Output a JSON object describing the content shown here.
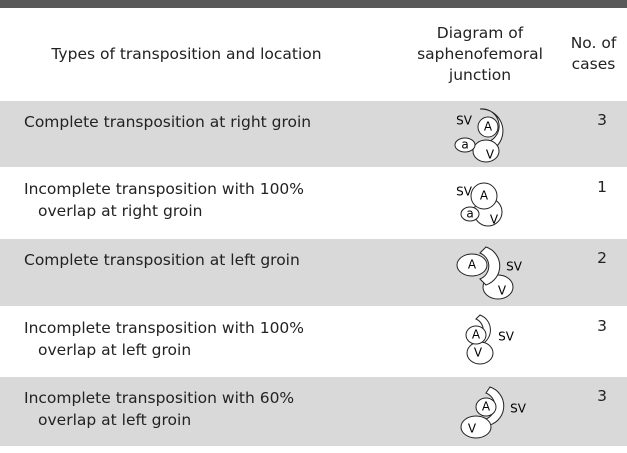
{
  "header": [
    "Types of transposition and location",
    "Diagram of saphenofemoral junction",
    "No. of cases"
  ],
  "rows": [
    {
      "type": [
        "Complete transposition at right groin"
      ],
      "diagram": [
        "SV",
        "A",
        "a",
        "V"
      ],
      "cases": 3
    },
    {
      "type": [
        "Incomplete transposition with 100%",
        "overlap at right groin"
      ],
      "diagram": [
        "SV",
        "A",
        "a",
        "V"
      ],
      "cases": 1
    },
    {
      "type": [
        "Complete transposition at left groin"
      ],
      "diagram": [
        "A",
        "SV",
        "V"
      ],
      "cases": 2
    },
    {
      "type": [
        "Incomplete transposition with 100%",
        "overlap at left groin"
      ],
      "diagram": [
        "A",
        "SV",
        "V"
      ],
      "cases": 3
    },
    {
      "type": [
        "Incomplete transposition with 60%",
        "overlap at left groin"
      ],
      "diagram": [
        "A",
        "SV",
        "V"
      ],
      "cases": 3
    }
  ]
}
